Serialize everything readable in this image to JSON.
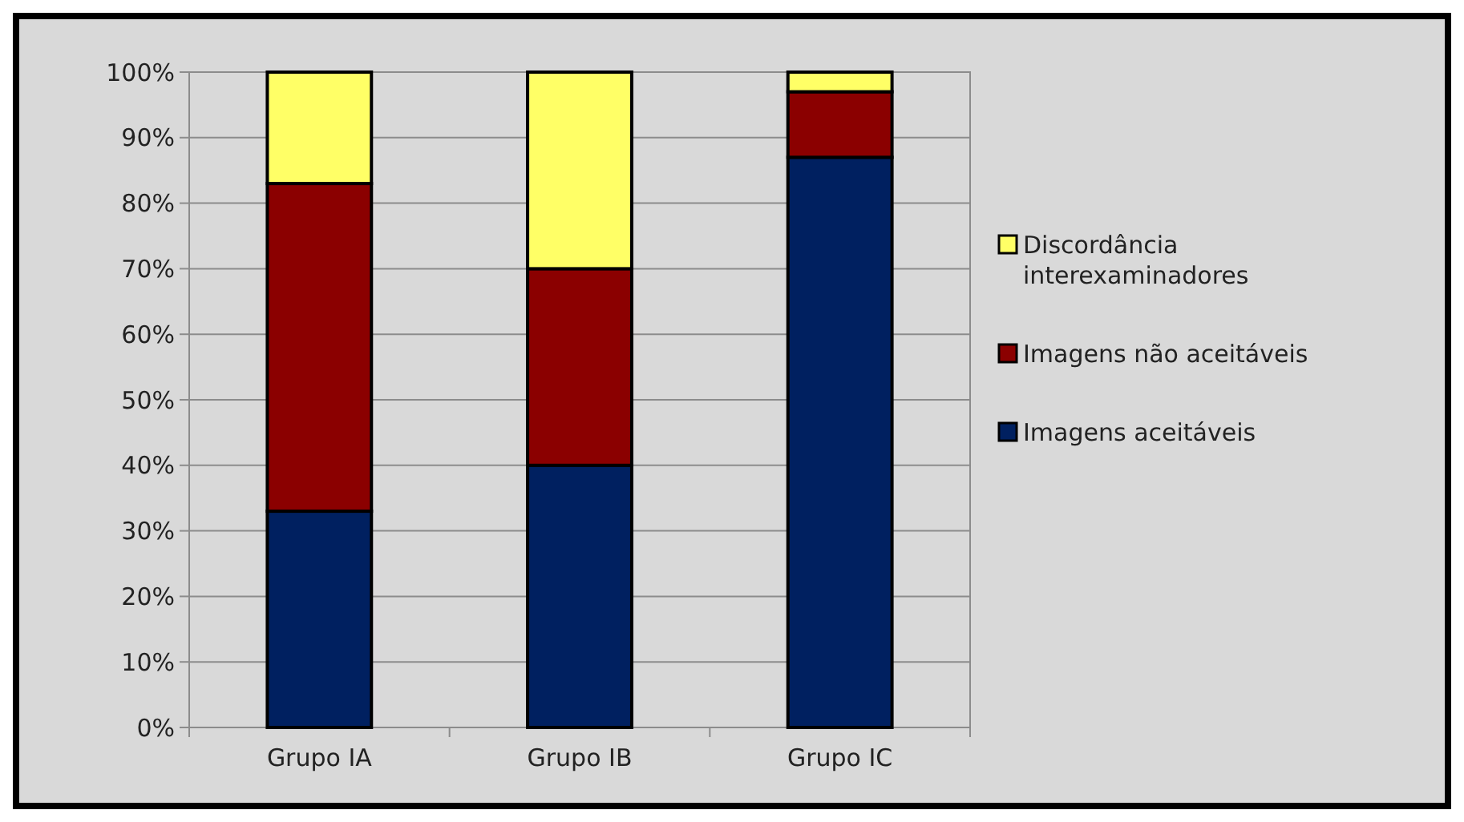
{
  "chart_data": {
    "type": "bar",
    "stacked": true,
    "categories": [
      "Grupo IA",
      "Grupo IB",
      "Grupo IC"
    ],
    "series": [
      {
        "name": "Imagens aceitáveis",
        "color": "#002060",
        "values": [
          33,
          40,
          87
        ]
      },
      {
        "name": "Imagens não aceitáveis",
        "color": "#8b0000",
        "values": [
          50,
          30,
          10
        ]
      },
      {
        "name": "Discordância interexaminadores",
        "color": "#ffff66",
        "values": [
          17,
          30,
          3
        ]
      }
    ],
    "ylim": [
      0,
      100
    ],
    "yticks": [
      {
        "value": 0,
        "label": "0%"
      },
      {
        "value": 10,
        "label": "10%"
      },
      {
        "value": 20,
        "label": "20%"
      },
      {
        "value": 30,
        "label": "30%"
      },
      {
        "value": 40,
        "label": "40%"
      },
      {
        "value": 50,
        "label": "50%"
      },
      {
        "value": 60,
        "label": "60%"
      },
      {
        "value": 70,
        "label": "70%"
      },
      {
        "value": 80,
        "label": "80%"
      },
      {
        "value": 90,
        "label": "90%"
      },
      {
        "value": 100,
        "label": "100%"
      }
    ],
    "grid": "y",
    "legend": "right"
  }
}
